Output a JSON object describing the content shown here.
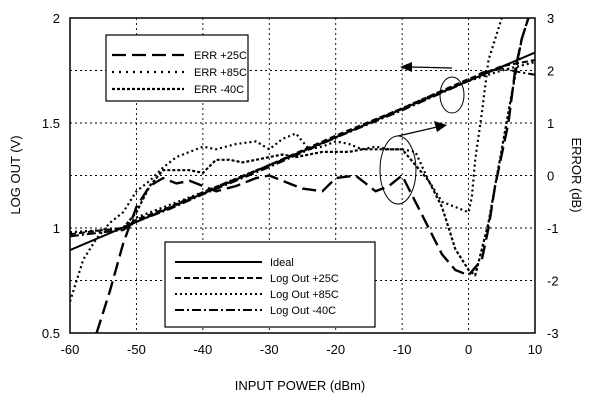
{
  "chart_data": {
    "type": "line",
    "xlabel": "INPUT POWER (dBm)",
    "ylabel": "LOG OUT (V)",
    "y2label": "ERROR (dB)",
    "xlim": [
      -60,
      10
    ],
    "ylim": [
      0.5,
      2
    ],
    "y2lim": [
      -3,
      3
    ],
    "x_ticks": [
      "-60",
      "-50",
      "-40",
      "-30",
      "-20",
      "-10",
      "0",
      "10"
    ],
    "y_ticks": [
      "0.5",
      "1",
      "1.5",
      "2"
    ],
    "y2_ticks": [
      "-3",
      "-2",
      "-1",
      "0",
      "1",
      "2",
      "3"
    ],
    "grid": true,
    "legends": [
      {
        "placement": "top-left",
        "entries": [
          "ERR +25C",
          "ERR +85C",
          "ERR  -40C"
        ]
      },
      {
        "placement": "bottom-center",
        "entries": [
          "Ideal",
          "Log Out +25C",
          "Log Out +85C",
          "Log Out  -40C"
        ]
      }
    ],
    "series": [
      {
        "name": "Ideal",
        "axis": "left",
        "style": "solid",
        "x": [
          -60,
          10
        ],
        "y": [
          0.895,
          1.835
        ]
      },
      {
        "name": "Log Out +25C",
        "axis": "left",
        "style": "dash",
        "x": [
          -60,
          -55,
          -52,
          -50,
          -45,
          -40,
          -30,
          -20,
          -10,
          -5,
          0,
          5,
          10
        ],
        "y": [
          0.97,
          0.99,
          1.0,
          1.04,
          1.1,
          1.17,
          1.3,
          1.44,
          1.57,
          1.64,
          1.71,
          1.77,
          1.8
        ]
      },
      {
        "name": "Log Out +85C",
        "axis": "left",
        "style": "dot",
        "x": [
          -60,
          -55,
          -52,
          -50,
          -45,
          -40,
          -30,
          -20,
          -10,
          -5,
          0,
          5,
          10
        ],
        "y": [
          0.98,
          0.99,
          1.0,
          1.05,
          1.11,
          1.17,
          1.3,
          1.43,
          1.57,
          1.64,
          1.7,
          1.75,
          1.79
        ]
      },
      {
        "name": "Log Out  -40C",
        "axis": "left",
        "style": "dash-dot",
        "x": [
          -60,
          -55,
          -52,
          -50,
          -45,
          -40,
          -30,
          -20,
          -10,
          -5,
          0,
          2,
          5,
          8,
          10
        ],
        "y": [
          0.96,
          0.98,
          0.99,
          1.03,
          1.09,
          1.16,
          1.29,
          1.43,
          1.56,
          1.63,
          1.7,
          1.74,
          1.76,
          1.74,
          1.73
        ]
      },
      {
        "name": "ERR +25C",
        "axis": "right",
        "style": "long-dash",
        "x": [
          -56,
          -54,
          -52,
          -50,
          -48,
          -46,
          -44,
          -42,
          -40,
          -38,
          -35,
          -32,
          -30,
          -28,
          -25,
          -22,
          -20,
          -17,
          -14,
          -12,
          -10,
          -8,
          -6,
          -4,
          -2,
          0,
          2,
          3,
          4,
          6,
          7,
          8,
          9
        ],
        "y": [
          -3.0,
          -2.2,
          -1.3,
          -0.6,
          -0.2,
          -0.05,
          -0.15,
          -0.1,
          -0.2,
          -0.3,
          -0.2,
          -0.05,
          0.0,
          -0.1,
          -0.25,
          -0.3,
          -0.05,
          0.0,
          -0.3,
          -0.2,
          0.0,
          -0.5,
          -1.0,
          -1.5,
          -1.8,
          -1.9,
          -1.6,
          -1.0,
          -0.2,
          1.0,
          2.0,
          2.6,
          3.0
        ]
      },
      {
        "name": "ERR +85C",
        "axis": "right",
        "style": "dot",
        "x": [
          -60,
          -58,
          -56,
          -54,
          -52,
          -50,
          -48,
          -46,
          -44,
          -42,
          -40,
          -38,
          -35,
          -32,
          -30,
          -28,
          -26,
          -24,
          -22,
          -20,
          -18,
          -16,
          -14,
          -12,
          -10,
          -8,
          -6,
          -4,
          -2,
          -1,
          0,
          0.5,
          1,
          2,
          3,
          5
        ],
        "y": [
          -2.4,
          -1.6,
          -1.2,
          -0.9,
          -0.7,
          -0.3,
          -0.1,
          0.15,
          0.35,
          0.45,
          0.55,
          0.5,
          0.6,
          0.65,
          0.5,
          0.7,
          0.8,
          0.5,
          0.55,
          0.65,
          0.6,
          0.5,
          0.55,
          0.5,
          0.5,
          0.45,
          -0.1,
          -0.5,
          -0.6,
          -0.65,
          -0.7,
          -0.4,
          0.3,
          1.2,
          2.2,
          3.0
        ]
      },
      {
        "name": "ERR  -40C",
        "axis": "right",
        "style": "short-dash",
        "x": [
          -52,
          -50,
          -48,
          -46,
          -44,
          -42,
          -40,
          -38,
          -36,
          -34,
          -32,
          -30,
          -28,
          -26,
          -24,
          -22,
          -20,
          -18,
          -16,
          -14,
          -12,
          -10,
          -8,
          -6,
          -4,
          -2,
          0,
          1,
          2,
          3,
          4,
          5,
          6,
          7,
          8,
          9
        ],
        "y": [
          -1.0,
          -0.7,
          -0.2,
          0.1,
          0.1,
          0.1,
          0.05,
          0.3,
          0.3,
          0.25,
          0.3,
          0.35,
          0.4,
          0.35,
          0.4,
          0.45,
          0.45,
          0.45,
          0.5,
          0.5,
          0.5,
          0.5,
          0.2,
          -0.1,
          -0.6,
          -1.4,
          -1.8,
          -1.9,
          -1.4,
          -0.9,
          -0.2,
          0.5,
          1.2,
          1.9,
          2.6,
          3.0
        ]
      }
    ]
  }
}
